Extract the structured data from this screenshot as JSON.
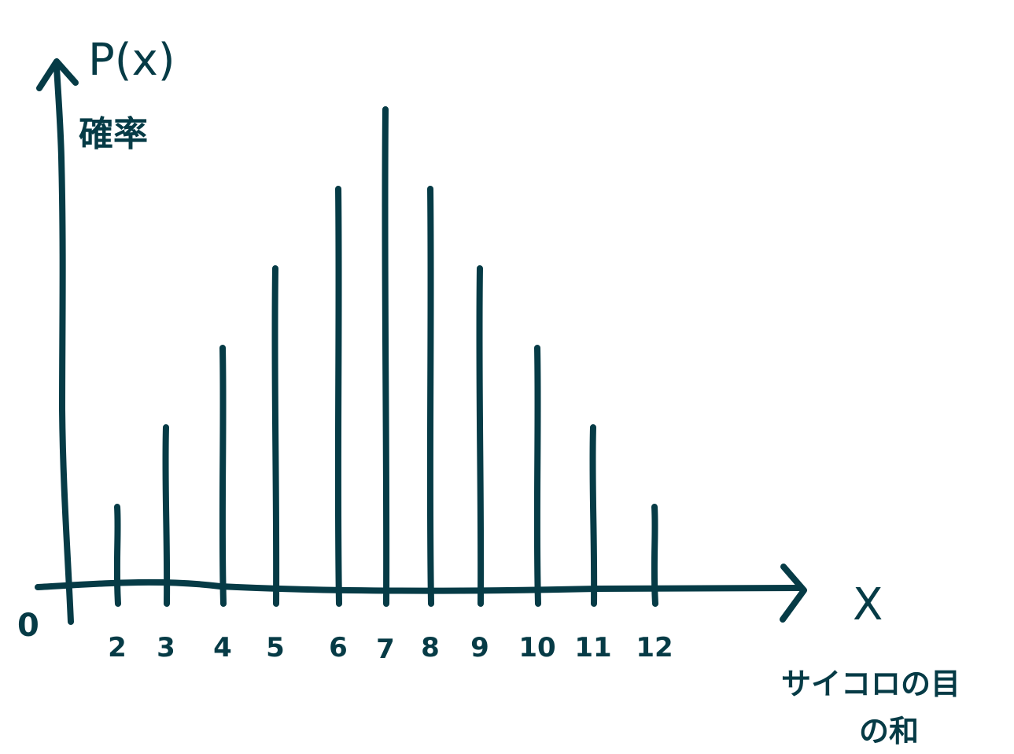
{
  "colors": {
    "ink": "#063b46",
    "background": "#ffffff"
  },
  "chart_data": {
    "type": "bar",
    "categories": [
      "2",
      "3",
      "4",
      "5",
      "6",
      "7",
      "8",
      "9",
      "10",
      "11",
      "12"
    ],
    "values": [
      1,
      2,
      3,
      4,
      5,
      6,
      5,
      4,
      3,
      2,
      1
    ],
    "y_axis_title": "P(x)",
    "y_axis_subtitle": "確率",
    "x_axis_symbol": "X",
    "x_axis_caption_line1": "サイコロの目",
    "x_axis_caption_line2": "の和",
    "origin_label": "0",
    "grid": false,
    "legend": "none",
    "style": "hand-drawn vertical lines"
  }
}
